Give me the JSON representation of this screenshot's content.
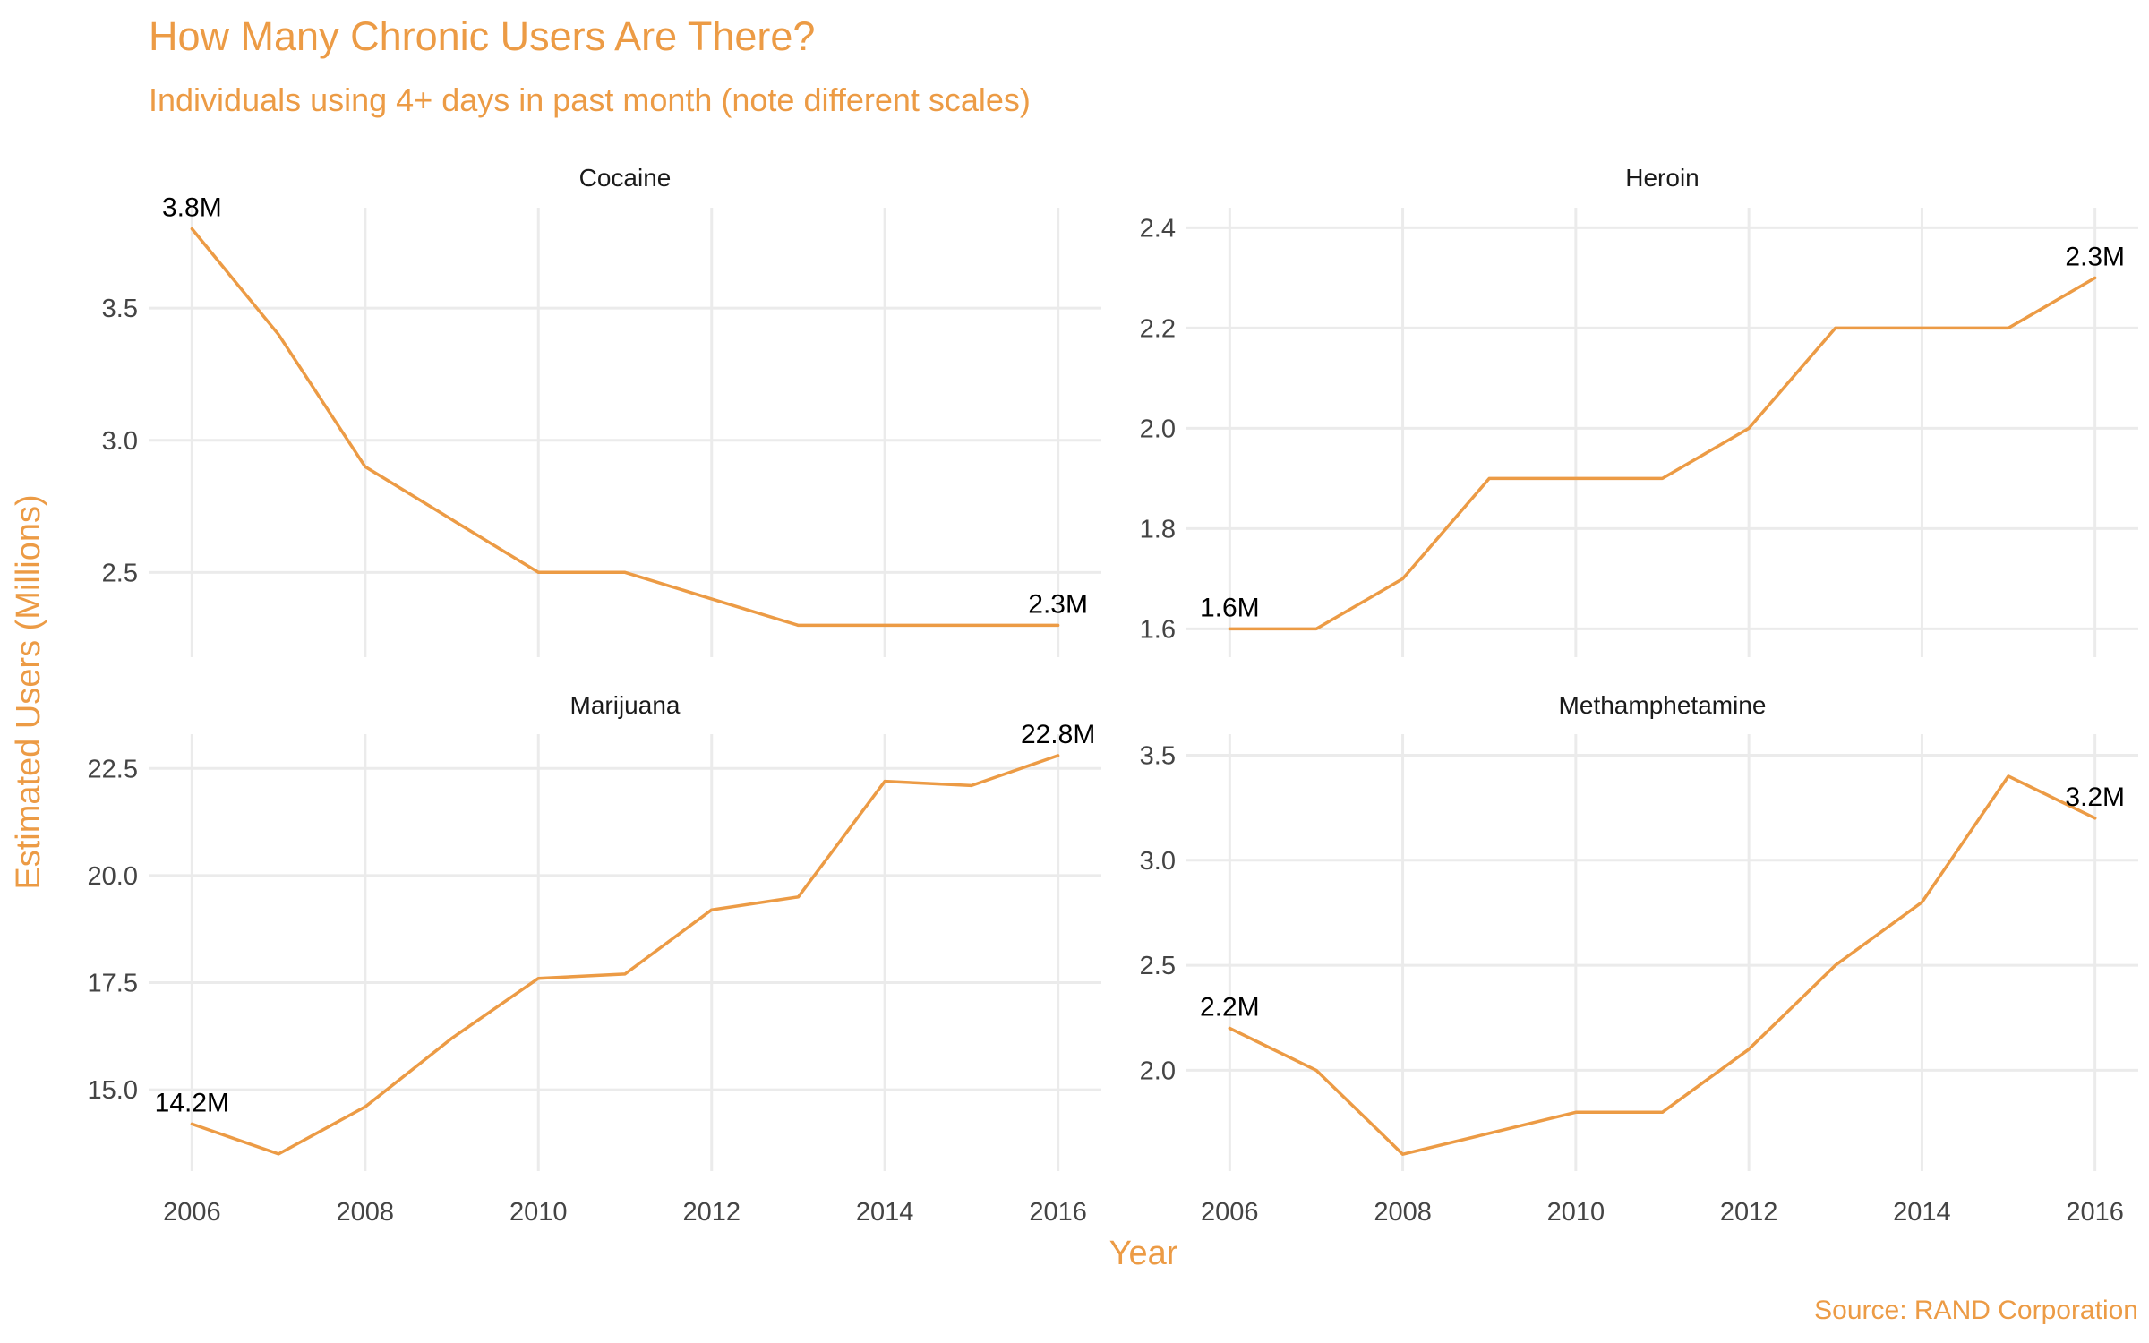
{
  "chart_data": {
    "type": "line",
    "title": "How Many Chronic Users Are There?",
    "subtitle": "Individuals using 4+ days in past month (note different scales)",
    "xlabel": "Year",
    "ylabel": "Estimated Users (Millions)",
    "caption": "Source: RAND Corporation",
    "colors": {
      "accent": "#ec9b45",
      "grid": "#ebebeb",
      "text": "#444444"
    },
    "x": [
      2006,
      2007,
      2008,
      2009,
      2010,
      2011,
      2012,
      2013,
      2014,
      2015,
      2016
    ],
    "xticks": [
      2006,
      2008,
      2010,
      2012,
      2014,
      2016
    ],
    "xlim": [
      2005.5,
      2016.5
    ],
    "grid": true,
    "panels": [
      {
        "name": "Cocaine",
        "values": [
          3.8,
          3.4,
          2.9,
          2.7,
          2.5,
          2.5,
          2.4,
          2.3,
          2.3,
          2.3,
          2.3
        ],
        "ylim": [
          2.22,
          3.88
        ],
        "yticks": [
          2.5,
          3.0,
          3.5
        ],
        "ytick_labels": [
          "2.5",
          "3.0",
          "3.5"
        ],
        "start_label": "3.8M",
        "end_label": "2.3M"
      },
      {
        "name": "Heroin",
        "values": [
          1.6,
          1.6,
          1.7,
          1.9,
          1.9,
          1.9,
          2.0,
          2.2,
          2.2,
          2.2,
          2.3
        ],
        "ylim": [
          1.565,
          2.44
        ],
        "yticks": [
          1.6,
          1.8,
          2.0,
          2.2,
          2.4
        ],
        "ytick_labels": [
          "1.6",
          "1.8",
          "2.0",
          "2.2",
          "2.4"
        ],
        "start_label": "1.6M",
        "end_label": "2.3M"
      },
      {
        "name": "Marijuana",
        "values": [
          14.2,
          13.5,
          14.6,
          16.2,
          17.6,
          17.7,
          19.2,
          19.5,
          22.2,
          22.1,
          22.8
        ],
        "ylim": [
          13.1,
          23.3
        ],
        "yticks": [
          15.0,
          17.5,
          20.0,
          22.5
        ],
        "ytick_labels": [
          "15.0",
          "17.5",
          "20.0",
          "22.5"
        ],
        "start_label": "14.2M",
        "end_label": "22.8M"
      },
      {
        "name": "Methamphetamine",
        "values": [
          2.2,
          2.0,
          1.6,
          1.7,
          1.8,
          1.8,
          2.1,
          2.5,
          2.8,
          3.4,
          3.2
        ],
        "ylim": [
          1.52,
          3.6
        ],
        "yticks": [
          2.0,
          2.5,
          3.0,
          3.5
        ],
        "ytick_labels": [
          "2.0",
          "2.5",
          "3.0",
          "3.5"
        ],
        "start_label": "2.2M",
        "end_label": "3.2M"
      }
    ]
  }
}
